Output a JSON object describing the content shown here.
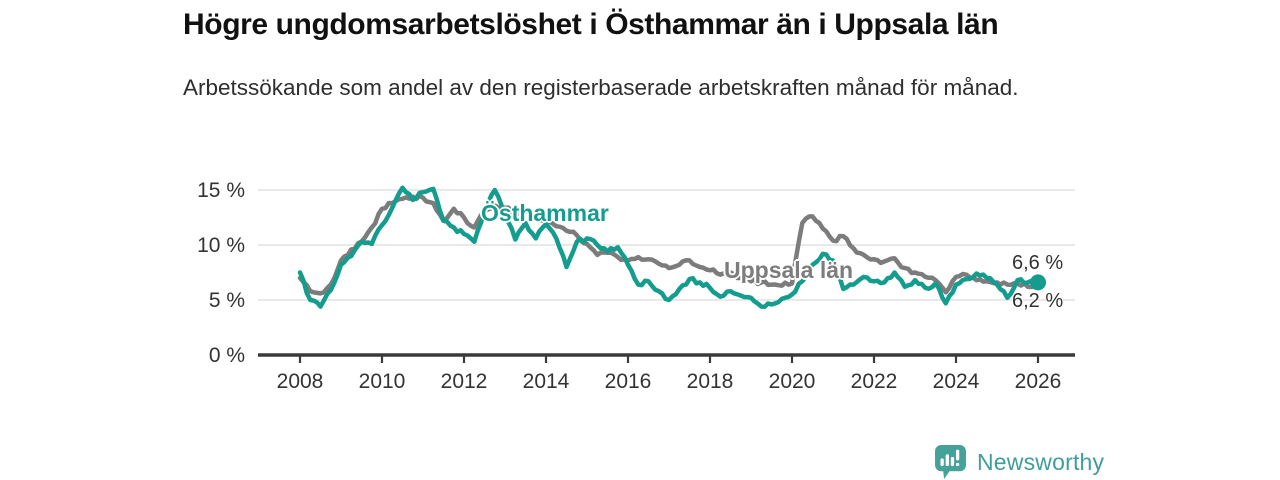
{
  "header": {
    "title": "Högre ungdomsarbetslöshet i Östhammar än i Uppsala län",
    "subtitle": "Arbetssökande som andel av den registerbaserade arbetskraften månad för månad."
  },
  "colors": {
    "osthammar": "#149d8e",
    "uppsala": "#7c7c7c",
    "grid": "#dcdcdc",
    "axis": "#3a3a3a",
    "tick_text": "#333333",
    "logo": "#45a29a"
  },
  "chart_data": {
    "type": "line",
    "title": "Högre ungdomsarbetslöshet i Östhammar än i Uppsala län",
    "subtitle": "Arbetssökande som andel av den registerbaserade arbetskraften månad för månad.",
    "unit": "%",
    "grid": "horizontal",
    "legend": "inline-labels",
    "ylim": [
      0,
      16.5
    ],
    "xlim": [
      2008,
      2026.9
    ],
    "ytick_values": [
      0,
      5,
      10,
      15
    ],
    "ytick_labels": [
      "0 %",
      "5 %",
      "10 %",
      "15 %"
    ],
    "xtick_values": [
      2008,
      2010,
      2012,
      2014,
      2016,
      2018,
      2020,
      2022,
      2024,
      2026
    ],
    "xtick_labels": [
      "2008",
      "2010",
      "2012",
      "2014",
      "2016",
      "2018",
      "2020",
      "2022",
      "2024",
      "2026"
    ],
    "x_start": 2008,
    "x_step": 0.25,
    "x": [
      2008,
      2008.25,
      2008.5,
      2008.75,
      2009,
      2009.25,
      2009.5,
      2009.75,
      2010,
      2010.25,
      2010.5,
      2010.75,
      2011,
      2011.25,
      2011.5,
      2011.75,
      2012,
      2012.25,
      2012.5,
      2012.75,
      2013,
      2013.25,
      2013.5,
      2013.75,
      2014,
      2014.25,
      2014.5,
      2014.75,
      2015,
      2015.25,
      2015.5,
      2015.75,
      2016,
      2016.25,
      2016.5,
      2016.75,
      2017,
      2017.25,
      2017.5,
      2017.75,
      2018,
      2018.25,
      2018.5,
      2018.75,
      2019,
      2019.25,
      2019.5,
      2019.75,
      2020,
      2020.25,
      2020.5,
      2020.75,
      2021,
      2021.25,
      2021.5,
      2021.75,
      2022,
      2022.25,
      2022.5,
      2022.75,
      2023,
      2023.25,
      2023.5,
      2023.75,
      2024,
      2024.25,
      2024.5,
      2024.75,
      2025,
      2025.25,
      2025.5,
      2025.75,
      2026
    ],
    "series": [
      {
        "name": "Östhammar",
        "color_key": "osthammar",
        "end_label": "6,6 %",
        "end_value": 6.6,
        "end_dot": true,
        "values": [
          7.5,
          5.0,
          4.4,
          5.9,
          8.2,
          9.0,
          10.3,
          10.1,
          11.8,
          13.4,
          15.2,
          14.1,
          14.8,
          15.1,
          12.2,
          11.6,
          11.0,
          10.3,
          13.0,
          15.0,
          12.8,
          10.5,
          12.0,
          10.6,
          11.9,
          10.6,
          8.0,
          10.3,
          10.6,
          10.0,
          9.4,
          9.8,
          8.2,
          6.4,
          6.7,
          5.8,
          5.0,
          6.0,
          6.9,
          6.6,
          6.1,
          5.3,
          5.8,
          5.4,
          5.2,
          4.4,
          4.6,
          5.1,
          5.5,
          6.7,
          8.2,
          9.2,
          8.6,
          6.0,
          6.4,
          7.1,
          6.7,
          6.6,
          7.5,
          6.2,
          6.8,
          6.1,
          6.5,
          4.7,
          6.4,
          6.9,
          7.4,
          7.0,
          6.4,
          5.2,
          6.8,
          6.6,
          6.6
        ]
      },
      {
        "name": "Uppsala län",
        "color_key": "uppsala",
        "end_label": "6,2 %",
        "end_value": 6.2,
        "end_dot": false,
        "values": [
          7.0,
          5.8,
          5.6,
          6.4,
          8.6,
          9.6,
          10.3,
          11.6,
          13.3,
          13.8,
          14.2,
          14.4,
          14.3,
          13.8,
          12.2,
          13.3,
          12.5,
          11.6,
          13.0,
          13.6,
          13.4,
          12.8,
          13.1,
          12.6,
          12.3,
          11.7,
          11.3,
          10.9,
          10.1,
          9.1,
          9.3,
          8.9,
          8.6,
          8.9,
          8.7,
          8.3,
          7.9,
          8.2,
          8.6,
          8.0,
          7.7,
          7.3,
          7.5,
          7.0,
          6.7,
          6.6,
          6.4,
          6.3,
          6.5,
          12.0,
          12.6,
          11.5,
          10.4,
          10.8,
          9.7,
          9.1,
          8.7,
          8.5,
          8.8,
          7.9,
          7.5,
          7.1,
          6.8,
          5.7,
          7.1,
          7.3,
          6.8,
          6.7,
          6.6,
          6.4,
          6.5,
          6.2,
          6.2
        ]
      }
    ]
  },
  "annotations": {
    "series_label_osthammar": "Östhammar",
    "series_label_uppsala": "Uppsala län"
  },
  "footer": {
    "brand": "Newsworthy"
  }
}
